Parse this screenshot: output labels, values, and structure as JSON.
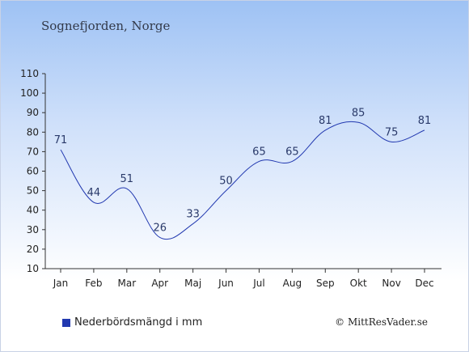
{
  "header": {
    "subtitle": "Sognefjorden, Norge"
  },
  "legend": {
    "label": "Nederbördsmängd i mm"
  },
  "footer": {
    "copyright": "© MittResVader.se"
  },
  "colors": {
    "series": "#2239b0",
    "axis": "#333333"
  },
  "chart_data": {
    "type": "line",
    "subtitle": "Sognefjorden, Norge",
    "categories": [
      "Jan",
      "Feb",
      "Mar",
      "Apr",
      "Maj",
      "Jun",
      "Jul",
      "Aug",
      "Sep",
      "Okt",
      "Nov",
      "Dec"
    ],
    "series": [
      {
        "name": "Nederbördsmängd i mm",
        "values": [
          71,
          44,
          51,
          26,
          33,
          50,
          65,
          65,
          81,
          85,
          75,
          81
        ]
      }
    ],
    "ylim": [
      10,
      110
    ],
    "yticks": [
      10,
      20,
      30,
      40,
      50,
      60,
      70,
      80,
      90,
      100,
      110
    ],
    "grid": false,
    "legend_position": "bottom-left",
    "data_labels": true
  }
}
